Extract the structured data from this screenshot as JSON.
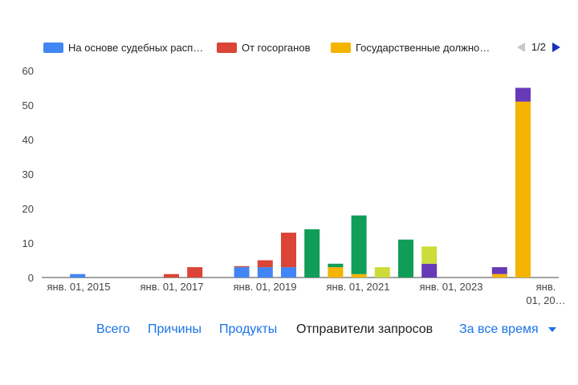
{
  "legend": {
    "items": [
      {
        "label": "На основе судебных расп…",
        "color": "#4285f4"
      },
      {
        "label": "От госорганов",
        "color": "#db4437"
      },
      {
        "label": "Государственные должно…",
        "color": "#f4b400"
      }
    ],
    "page": "1/2"
  },
  "tabs": {
    "all": "Всего",
    "reasons": "Причины",
    "products": "Продукты",
    "requesters": "Отправители запросов",
    "period": "За все время"
  },
  "chart_data": {
    "type": "bar",
    "stacked": true,
    "ylim": [
      0,
      60
    ],
    "yticks": [
      0,
      10,
      20,
      30,
      40,
      50,
      60
    ],
    "grid": false,
    "legend_position": "top",
    "xtick_labels": [
      [
        "янв. 01, 2015"
      ],
      [
        "янв. 01, 2017"
      ],
      [
        "янв. 01, 2019"
      ],
      [
        "янв. 01, 2021"
      ],
      [
        "янв. 01, 2023"
      ],
      [
        "янв.",
        "01, 20…"
      ]
    ],
    "series_colors": {
      "court": "#4285f4",
      "gov": "#db4437",
      "officials": "#f4b400",
      "green": "#0f9d58",
      "lime": "#cddc39",
      "purple": "#673ab7"
    },
    "bars": [
      {
        "period": "2014-H2",
        "segments": [
          {
            "series": "court",
            "value": 1
          }
        ]
      },
      {
        "period": "2016-H2",
        "segments": [
          {
            "series": "gov",
            "value": 1
          }
        ]
      },
      {
        "period": "2017-H1",
        "segments": [
          {
            "series": "gov",
            "value": 3
          }
        ]
      },
      {
        "period": "2018-H1",
        "segments": [
          {
            "series": "court",
            "value": 3
          },
          {
            "series": "gov",
            "value": 0.3
          }
        ]
      },
      {
        "period": "2018-H2",
        "segments": [
          {
            "series": "court",
            "value": 3
          },
          {
            "series": "gov",
            "value": 2
          }
        ]
      },
      {
        "period": "2019-H1",
        "segments": [
          {
            "series": "court",
            "value": 3
          },
          {
            "series": "gov",
            "value": 10
          }
        ]
      },
      {
        "period": "2019-H2",
        "segments": [
          {
            "series": "green",
            "value": 14
          }
        ]
      },
      {
        "period": "2020-H1",
        "segments": [
          {
            "series": "officials",
            "value": 3
          },
          {
            "series": "green",
            "value": 1
          }
        ]
      },
      {
        "period": "2020-H2",
        "segments": [
          {
            "series": "officials",
            "value": 1
          },
          {
            "series": "green",
            "value": 17
          }
        ]
      },
      {
        "period": "2021-H1",
        "segments": [
          {
            "series": "lime",
            "value": 3
          }
        ]
      },
      {
        "period": "2021-H2",
        "segments": [
          {
            "series": "green",
            "value": 11
          }
        ]
      },
      {
        "period": "2022-H1",
        "segments": [
          {
            "series": "purple",
            "value": 4
          },
          {
            "series": "lime",
            "value": 5
          }
        ]
      },
      {
        "period": "2023-H2",
        "segments": [
          {
            "series": "officials",
            "value": 1
          },
          {
            "series": "purple",
            "value": 2
          }
        ]
      },
      {
        "period": "2024-H1",
        "segments": [
          {
            "series": "officials",
            "value": 51
          },
          {
            "series": "purple",
            "value": 4
          }
        ]
      }
    ]
  }
}
